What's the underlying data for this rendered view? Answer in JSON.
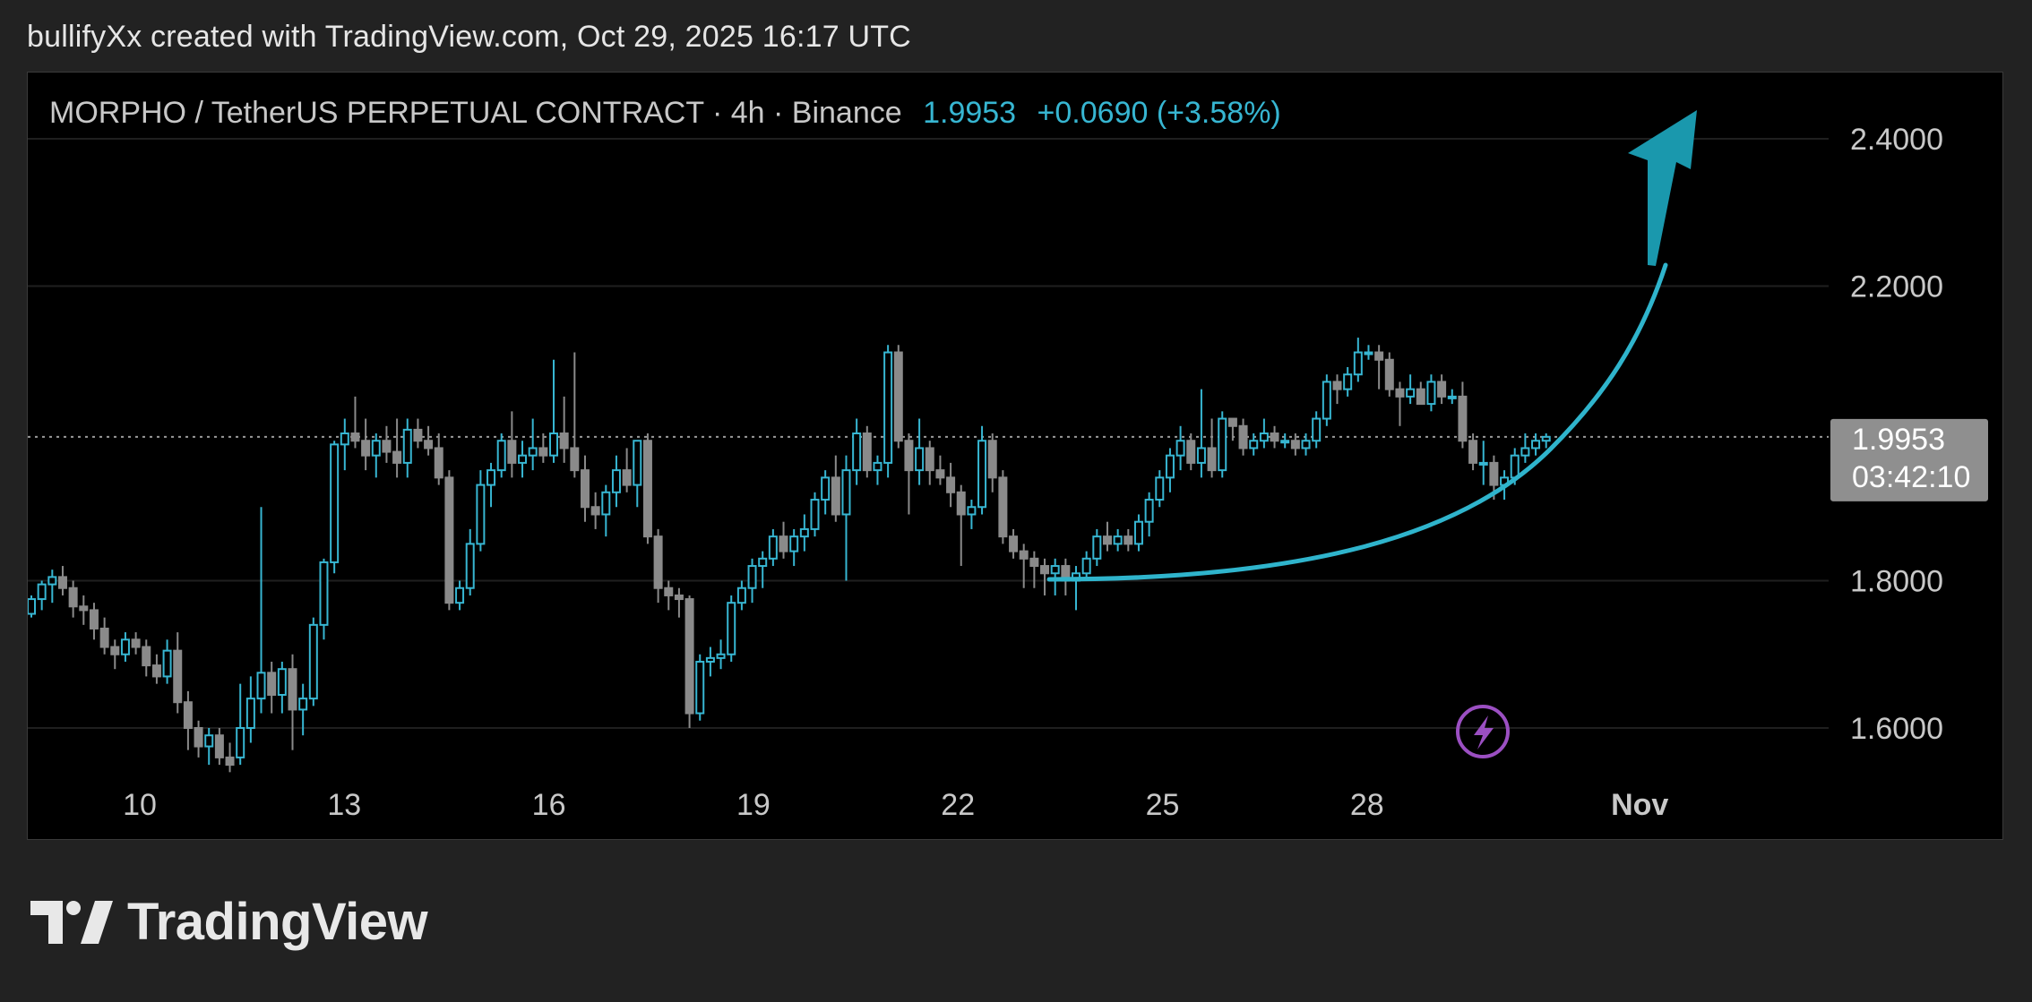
{
  "attribution": "bullifyXx created with TradingView.com, Oct 29, 2025 16:17 UTC",
  "header": {
    "symbol": "MORPHO / TetherUS PERPETUAL CONTRACT · 4h · Binance",
    "last_price": "1.9953",
    "change": "+0.0690 (+3.58%)"
  },
  "logo": {
    "wordmark": "TradingView",
    "icon": "tradingview-logo-icon"
  },
  "colors": {
    "background": "#000000",
    "up_candle": "#37b6d2",
    "down_candle": "#8a8a8a",
    "arrow": "#1a98ad",
    "text": "#c8c8c8",
    "grid": "#1c1c1c",
    "price_tag_bg": "#8f8f8f",
    "lightning": "#9b4fc2"
  },
  "chart_data": {
    "type": "candlestick",
    "title": "MORPHO / TetherUS PERPETUAL CONTRACT · 4h · Binance",
    "ylim": [
      1.53,
      2.44
    ],
    "y_ticks": [
      {
        "value": 2.4,
        "label": "2.4000"
      },
      {
        "value": 2.2,
        "label": "2.2000"
      },
      {
        "value": 1.8,
        "label": "1.8000"
      },
      {
        "value": 1.6,
        "label": "1.6000"
      }
    ],
    "x_ticks": [
      {
        "day": 10,
        "label": "10",
        "bold": false
      },
      {
        "day": 13,
        "label": "13",
        "bold": false
      },
      {
        "day": 16,
        "label": "16",
        "bold": false
      },
      {
        "day": 19,
        "label": "19",
        "bold": false
      },
      {
        "day": 22,
        "label": "22",
        "bold": false
      },
      {
        "day": 25,
        "label": "25",
        "bold": false
      },
      {
        "day": 28,
        "label": "28",
        "bold": false
      },
      {
        "day": 32,
        "label": "Nov",
        "bold": true
      }
    ],
    "current_price": {
      "value": 1.9953,
      "label": "1.9953",
      "countdown": "03:42:10"
    },
    "candles": [
      [
        1.755,
        1.78,
        1.75,
        1.775
      ],
      [
        1.775,
        1.8,
        1.76,
        1.795
      ],
      [
        1.795,
        1.815,
        1.77,
        1.805
      ],
      [
        1.805,
        1.82,
        1.78,
        1.79
      ],
      [
        1.79,
        1.8,
        1.75,
        1.765
      ],
      [
        1.765,
        1.78,
        1.74,
        1.76
      ],
      [
        1.76,
        1.77,
        1.72,
        1.735
      ],
      [
        1.735,
        1.75,
        1.7,
        1.71
      ],
      [
        1.71,
        1.72,
        1.68,
        1.7
      ],
      [
        1.7,
        1.73,
        1.69,
        1.72
      ],
      [
        1.72,
        1.73,
        1.7,
        1.71
      ],
      [
        1.71,
        1.72,
        1.67,
        1.685
      ],
      [
        1.685,
        1.7,
        1.66,
        1.67
      ],
      [
        1.67,
        1.72,
        1.66,
        1.705
      ],
      [
        1.705,
        1.73,
        1.62,
        1.635
      ],
      [
        1.635,
        1.65,
        1.57,
        1.6
      ],
      [
        1.6,
        1.61,
        1.56,
        1.575
      ],
      [
        1.575,
        1.6,
        1.55,
        1.59
      ],
      [
        1.59,
        1.6,
        1.55,
        1.56
      ],
      [
        1.56,
        1.58,
        1.54,
        1.55
      ],
      [
        1.56,
        1.66,
        1.55,
        1.6
      ],
      [
        1.6,
        1.67,
        1.58,
        1.64
      ],
      [
        1.64,
        1.9,
        1.62,
        1.675
      ],
      [
        1.675,
        1.69,
        1.62,
        1.645
      ],
      [
        1.645,
        1.69,
        1.62,
        1.68
      ],
      [
        1.68,
        1.7,
        1.57,
        1.625
      ],
      [
        1.625,
        1.66,
        1.59,
        1.64
      ],
      [
        1.64,
        1.75,
        1.63,
        1.74
      ],
      [
        1.74,
        1.83,
        1.72,
        1.825
      ],
      [
        1.825,
        1.99,
        1.81,
        1.985
      ],
      [
        1.985,
        2.02,
        1.95,
        2.0
      ],
      [
        2.0,
        2.05,
        1.98,
        1.99
      ],
      [
        1.99,
        2.02,
        1.95,
        1.97
      ],
      [
        1.97,
        2.0,
        1.94,
        1.99
      ],
      [
        1.99,
        2.01,
        1.96,
        1.975
      ],
      [
        1.975,
        2.02,
        1.94,
        1.96
      ],
      [
        1.96,
        2.02,
        1.94,
        2.005
      ],
      [
        2.005,
        2.02,
        1.98,
        1.99
      ],
      [
        1.99,
        2.01,
        1.97,
        1.98
      ],
      [
        1.98,
        2.0,
        1.93,
        1.94
      ],
      [
        1.94,
        1.95,
        1.76,
        1.77
      ],
      [
        1.77,
        1.8,
        1.76,
        1.79
      ],
      [
        1.79,
        1.87,
        1.78,
        1.85
      ],
      [
        1.85,
        1.95,
        1.84,
        1.93
      ],
      [
        1.93,
        1.96,
        1.9,
        1.95
      ],
      [
        1.95,
        2.0,
        1.94,
        1.99
      ],
      [
        1.99,
        2.03,
        1.94,
        1.96
      ],
      [
        1.96,
        1.99,
        1.94,
        1.97
      ],
      [
        1.97,
        2.02,
        1.95,
        1.98
      ],
      [
        1.98,
        2.0,
        1.96,
        1.97
      ],
      [
        1.97,
        2.1,
        1.96,
        2.0
      ],
      [
        2.0,
        2.05,
        1.96,
        1.98
      ],
      [
        1.98,
        2.11,
        1.94,
        1.95
      ],
      [
        1.95,
        1.97,
        1.88,
        1.9
      ],
      [
        1.9,
        1.92,
        1.87,
        1.89
      ],
      [
        1.89,
        1.93,
        1.86,
        1.92
      ],
      [
        1.92,
        1.97,
        1.9,
        1.95
      ],
      [
        1.95,
        1.98,
        1.92,
        1.93
      ],
      [
        1.93,
        1.99,
        1.9,
        1.99
      ],
      [
        1.99,
        2.0,
        1.85,
        1.86
      ],
      [
        1.86,
        1.87,
        1.77,
        1.79
      ],
      [
        1.79,
        1.8,
        1.76,
        1.78
      ],
      [
        1.78,
        1.79,
        1.75,
        1.775
      ],
      [
        1.775,
        1.78,
        1.6,
        1.62
      ],
      [
        1.62,
        1.7,
        1.61,
        1.69
      ],
      [
        1.69,
        1.71,
        1.67,
        1.695
      ],
      [
        1.695,
        1.72,
        1.68,
        1.7
      ],
      [
        1.7,
        1.78,
        1.69,
        1.77
      ],
      [
        1.77,
        1.8,
        1.76,
        1.79
      ],
      [
        1.79,
        1.83,
        1.77,
        1.82
      ],
      [
        1.82,
        1.84,
        1.79,
        1.83
      ],
      [
        1.83,
        1.87,
        1.82,
        1.86
      ],
      [
        1.86,
        1.88,
        1.83,
        1.84
      ],
      [
        1.84,
        1.87,
        1.82,
        1.86
      ],
      [
        1.86,
        1.89,
        1.84,
        1.87
      ],
      [
        1.87,
        1.92,
        1.86,
        1.91
      ],
      [
        1.91,
        1.95,
        1.89,
        1.94
      ],
      [
        1.94,
        1.97,
        1.88,
        1.89
      ],
      [
        1.89,
        1.97,
        1.8,
        1.95
      ],
      [
        1.95,
        2.02,
        1.93,
        2.0
      ],
      [
        2.0,
        2.01,
        1.94,
        1.95
      ],
      [
        1.95,
        1.97,
        1.93,
        1.96
      ],
      [
        1.96,
        2.12,
        1.94,
        2.11
      ],
      [
        2.11,
        2.12,
        1.98,
        1.99
      ],
      [
        1.99,
        2.0,
        1.89,
        1.95
      ],
      [
        1.95,
        2.02,
        1.93,
        1.98
      ],
      [
        1.98,
        1.99,
        1.93,
        1.95
      ],
      [
        1.95,
        1.97,
        1.93,
        1.94
      ],
      [
        1.94,
        1.96,
        1.9,
        1.92
      ],
      [
        1.92,
        1.93,
        1.82,
        1.89
      ],
      [
        1.89,
        1.91,
        1.87,
        1.9
      ],
      [
        1.9,
        2.01,
        1.89,
        1.99
      ],
      [
        1.99,
        2.0,
        1.92,
        1.94
      ],
      [
        1.94,
        1.95,
        1.85,
        1.86
      ],
      [
        1.86,
        1.87,
        1.83,
        1.84
      ],
      [
        1.84,
        1.85,
        1.79,
        1.83
      ],
      [
        1.83,
        1.84,
        1.79,
        1.82
      ],
      [
        1.82,
        1.83,
        1.78,
        1.81
      ],
      [
        1.81,
        1.83,
        1.78,
        1.82
      ],
      [
        1.82,
        1.83,
        1.78,
        1.8
      ],
      [
        1.8,
        1.82,
        1.76,
        1.81
      ],
      [
        1.81,
        1.84,
        1.8,
        1.83
      ],
      [
        1.83,
        1.87,
        1.82,
        1.86
      ],
      [
        1.86,
        1.88,
        1.84,
        1.85
      ],
      [
        1.85,
        1.87,
        1.84,
        1.86
      ],
      [
        1.86,
        1.87,
        1.84,
        1.85
      ],
      [
        1.85,
        1.89,
        1.84,
        1.88
      ],
      [
        1.88,
        1.92,
        1.86,
        1.91
      ],
      [
        1.91,
        1.95,
        1.9,
        1.94
      ],
      [
        1.94,
        1.98,
        1.92,
        1.97
      ],
      [
        1.97,
        2.01,
        1.95,
        1.99
      ],
      [
        1.99,
        2.0,
        1.95,
        1.96
      ],
      [
        1.96,
        2.06,
        1.94,
        1.98
      ],
      [
        1.98,
        2.02,
        1.94,
        1.95
      ],
      [
        1.95,
        2.03,
        1.94,
        2.02
      ],
      [
        2.02,
        2.02,
        1.99,
        2.01
      ],
      [
        2.01,
        2.02,
        1.97,
        1.98
      ],
      [
        1.98,
        2.0,
        1.97,
        1.99
      ],
      [
        1.99,
        2.02,
        1.98,
        2.0
      ],
      [
        2.0,
        2.01,
        1.98,
        1.99
      ],
      [
        1.99,
        2.0,
        1.98,
        1.99
      ],
      [
        1.99,
        2.0,
        1.97,
        1.98
      ],
      [
        1.98,
        2.0,
        1.97,
        1.99
      ],
      [
        1.99,
        2.03,
        1.98,
        2.02
      ],
      [
        2.02,
        2.08,
        2.01,
        2.07
      ],
      [
        2.07,
        2.08,
        2.04,
        2.06
      ],
      [
        2.06,
        2.09,
        2.05,
        2.08
      ],
      [
        2.08,
        2.13,
        2.07,
        2.11
      ],
      [
        2.11,
        2.12,
        2.1,
        2.11
      ],
      [
        2.11,
        2.12,
        2.06,
        2.1
      ],
      [
        2.1,
        2.11,
        2.05,
        2.06
      ],
      [
        2.06,
        2.07,
        2.01,
        2.05
      ],
      [
        2.05,
        2.08,
        2.04,
        2.06
      ],
      [
        2.06,
        2.07,
        2.04,
        2.04
      ],
      [
        2.04,
        2.08,
        2.03,
        2.07
      ],
      [
        2.07,
        2.08,
        2.04,
        2.05
      ],
      [
        2.05,
        2.06,
        2.04,
        2.05
      ],
      [
        2.05,
        2.07,
        1.98,
        1.99
      ],
      [
        1.99,
        2.0,
        1.95,
        1.96
      ],
      [
        1.96,
        1.99,
        1.93,
        1.96
      ],
      [
        1.96,
        1.97,
        1.91,
        1.93
      ],
      [
        1.93,
        1.95,
        1.91,
        1.94
      ],
      [
        1.94,
        1.98,
        1.93,
        1.97
      ],
      [
        1.97,
        2.0,
        1.96,
        1.98
      ],
      [
        1.98,
        2.0,
        1.97,
        1.99
      ],
      [
        1.99,
        2.0,
        1.98,
        1.9953
      ]
    ]
  }
}
